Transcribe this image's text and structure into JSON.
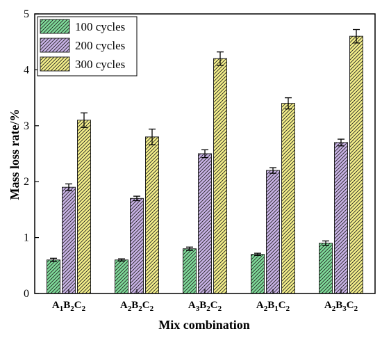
{
  "chart_data": {
    "type": "bar",
    "xlabel": "Mix combination",
    "ylabel": "Mass loss rate/%",
    "ylim": [
      0,
      5
    ],
    "yticks": [
      0,
      1,
      2,
      3,
      4,
      5
    ],
    "categories": [
      {
        "base": "A",
        "a": "1",
        "mid": "B",
        "b": "2",
        "end": "C",
        "c": "2"
      },
      {
        "base": "A",
        "a": "2",
        "mid": "B",
        "b": "2",
        "end": "C",
        "c": "2"
      },
      {
        "base": "A",
        "a": "3",
        "mid": "B",
        "b": "2",
        "end": "C",
        "c": "2"
      },
      {
        "base": "A",
        "a": "2",
        "mid": "B",
        "b": "1",
        "end": "C",
        "c": "2"
      },
      {
        "base": "A",
        "a": "2",
        "mid": "B",
        "b": "3",
        "end": "C",
        "c": "2"
      }
    ],
    "series": [
      {
        "name": "100 cycles",
        "color": "#7fdc9a",
        "values": [
          0.6,
          0.6,
          0.8,
          0.7,
          0.9
        ],
        "errors": [
          0.03,
          0.02,
          0.03,
          0.02,
          0.04
        ]
      },
      {
        "name": "200 cycles",
        "color": "#c9b3e6",
        "values": [
          1.9,
          1.7,
          2.5,
          2.2,
          2.7
        ],
        "errors": [
          0.06,
          0.04,
          0.07,
          0.05,
          0.06
        ]
      },
      {
        "name": "300 cycles",
        "color": "#f5f08a",
        "values": [
          3.1,
          2.8,
          4.2,
          3.4,
          4.6
        ],
        "errors": [
          0.13,
          0.14,
          0.12,
          0.1,
          0.12
        ]
      }
    ],
    "legend_position": "top-left",
    "grid": false
  }
}
